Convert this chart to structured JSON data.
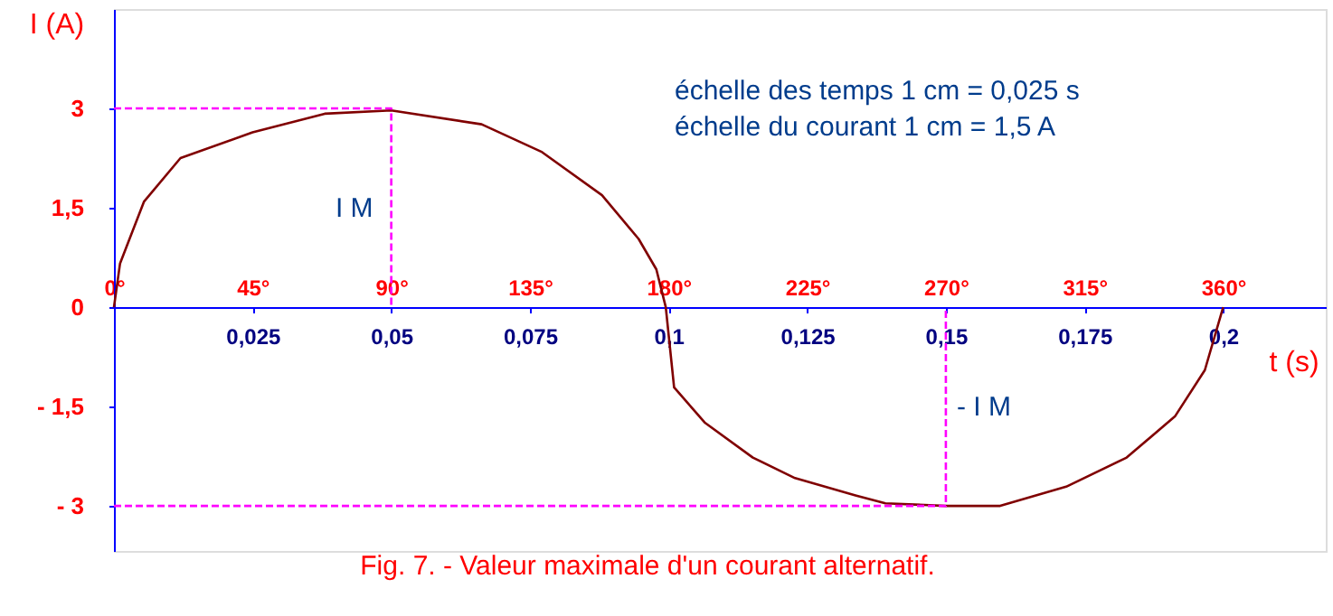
{
  "chart_data": {
    "type": "line",
    "xlabel": "t (s)",
    "ylabel": "I (A)",
    "xlim": [
      0,
      0.2185
    ],
    "ylim": [
      -3.68,
      4.5
    ],
    "xticks": [
      {
        "value": 0.025,
        "label": "0,025"
      },
      {
        "value": 0.05,
        "label": "0,05"
      },
      {
        "value": 0.075,
        "label": "0,075"
      },
      {
        "value": 0.1,
        "label": "0,1"
      },
      {
        "value": 0.125,
        "label": "0,125"
      },
      {
        "value": 0.15,
        "label": "0,15"
      },
      {
        "value": 0.175,
        "label": "0,175"
      },
      {
        "value": 0.2,
        "label": "0,2"
      }
    ],
    "x2lim": [
      0,
      393.3
    ],
    "x2ticks": [
      {
        "value": 0,
        "label": "0°"
      },
      {
        "value": 45,
        "label": "45°"
      },
      {
        "value": 90,
        "label": "90°"
      },
      {
        "value": 135,
        "label": "135°"
      },
      {
        "value": 180,
        "label": "180°"
      },
      {
        "value": 225,
        "label": "225°"
      },
      {
        "value": 270,
        "label": "270°"
      },
      {
        "value": 315,
        "label": "315°"
      },
      {
        "value": 360,
        "label": "360°"
      }
    ],
    "yticks": [
      {
        "value": -3,
        "label": "- 3"
      },
      {
        "value": -1.5,
        "label": "- 1,5"
      },
      0,
      {
        "value": 1.5,
        "label": "1,5"
      },
      3
    ],
    "series": [
      {
        "color": "#800000",
        "x": [
          0,
          0.0011,
          0.0054,
          0.012,
          0.025,
          0.038,
          0.05,
          0.0663,
          0.0772,
          0.088,
          0.0946,
          0.0978,
          0.0995,
          0.101,
          0.1065,
          0.1152,
          0.1228,
          0.1337,
          0.1391,
          0.15,
          0.1598,
          0.1717,
          0.1826,
          0.1913,
          0.1967,
          0.2
        ],
        "values": [
          0,
          0.66,
          1.59,
          2.25,
          2.64,
          2.92,
          2.97,
          2.76,
          2.34,
          1.69,
          1.03,
          0.57,
          0,
          -1.21,
          -1.74,
          -2.27,
          -2.58,
          -2.84,
          -2.96,
          -3,
          -3,
          -2.71,
          -2.27,
          -1.65,
          -0.95,
          0
        ]
      },
      {
        "type": "line",
        "color": "#ff00ff",
        "line_style": "dashed",
        "x": [
          0,
          0.05,
          0.05
        ],
        "values": [
          3,
          3,
          0
        ]
      },
      {
        "type": "line",
        "color": "#ff00ff",
        "line_style": "dashed",
        "x": [
          0,
          0.15,
          0.15
        ],
        "values": [
          -3,
          -3,
          0
        ]
      }
    ],
    "annotations": [
      {
        "text": "I M",
        "x": 0.05,
        "y": 1.5
      },
      {
        "text": "- I M",
        "x": 0.15,
        "y": -1.5
      },
      "échelle des temps 1 cm = 0,025 s",
      "échelle du courant 1 cm = 1,5 A",
      "Fig. 7. - Valeur maximale d'un courant alternatif."
    ],
    "grid": false,
    "marker": "none",
    "line_style": "solid"
  }
}
